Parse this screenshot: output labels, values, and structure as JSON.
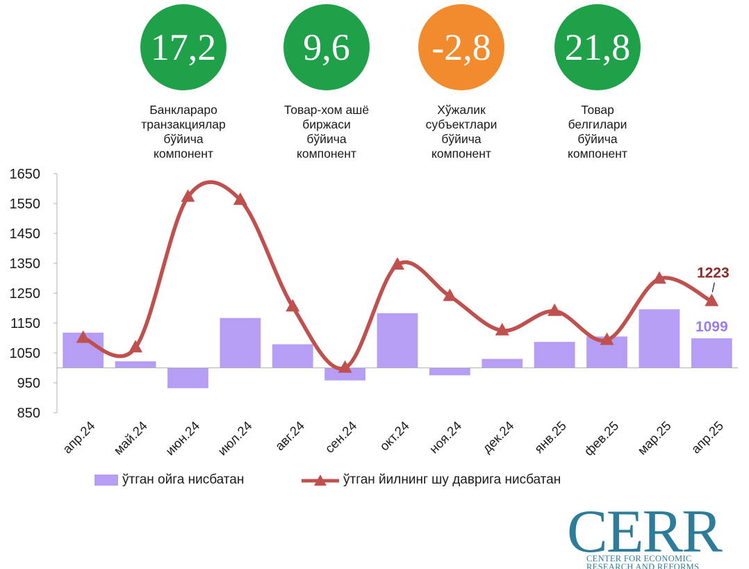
{
  "kpis": [
    {
      "value": "17,2",
      "lines": [
        "Банклараро",
        "транзакциялар",
        "бўйича",
        "компонент"
      ],
      "color": "#1fa14a"
    },
    {
      "value": "9,6",
      "lines": [
        "Товар-хом ашё",
        "биржаси",
        "бўйича",
        "компонент"
      ],
      "color": "#1fa14a"
    },
    {
      "value": "-2,8",
      "lines": [
        "Хўжалик",
        "субъектлари",
        "бўйича",
        "компонент"
      ],
      "color": "#f28a2e"
    },
    {
      "value": "21,8",
      "lines": [
        "Товар",
        "белгилари",
        "бўйича",
        "компонент"
      ],
      "color": "#1fa14a"
    }
  ],
  "chart_data": {
    "type": "bar",
    "categories": [
      "апр.24",
      "май.24",
      "июн.24",
      "июл.24",
      "авг.24",
      "сен.24",
      "окт.24",
      "ноя.24",
      "дек.24",
      "янв.25",
      "фев.25",
      "мар.25",
      "апр.25"
    ],
    "series": [
      {
        "name": "ўтган ойга нисбатан",
        "type": "bar",
        "color": "#b79ef5",
        "values": [
          1118,
          1022,
          932,
          1167,
          1079,
          958,
          1183,
          975,
          1030,
          1087,
          1105,
          1196,
          1099
        ]
      },
      {
        "name": "ўтган йилнинг шу даврига нисбатан",
        "type": "line",
        "color": "#c0504d",
        "values": [
          1100,
          1068,
          1572,
          1562,
          1205,
          1000,
          1345,
          1240,
          1125,
          1190,
          1093,
          1298,
          1223
        ]
      }
    ],
    "yticks": [
      850,
      950,
      1050,
      1150,
      1250,
      1350,
      1450,
      1550,
      1650
    ],
    "ylim": [
      850,
      1650
    ],
    "baseline": 1000,
    "data_labels": {
      "line_last": "1223",
      "bar_last": "1099"
    }
  },
  "logo": {
    "word": "CERR",
    "sub_lines": [
      "CENTER FOR ECONOMIC",
      "RESEARCH AND REFORMS"
    ]
  }
}
